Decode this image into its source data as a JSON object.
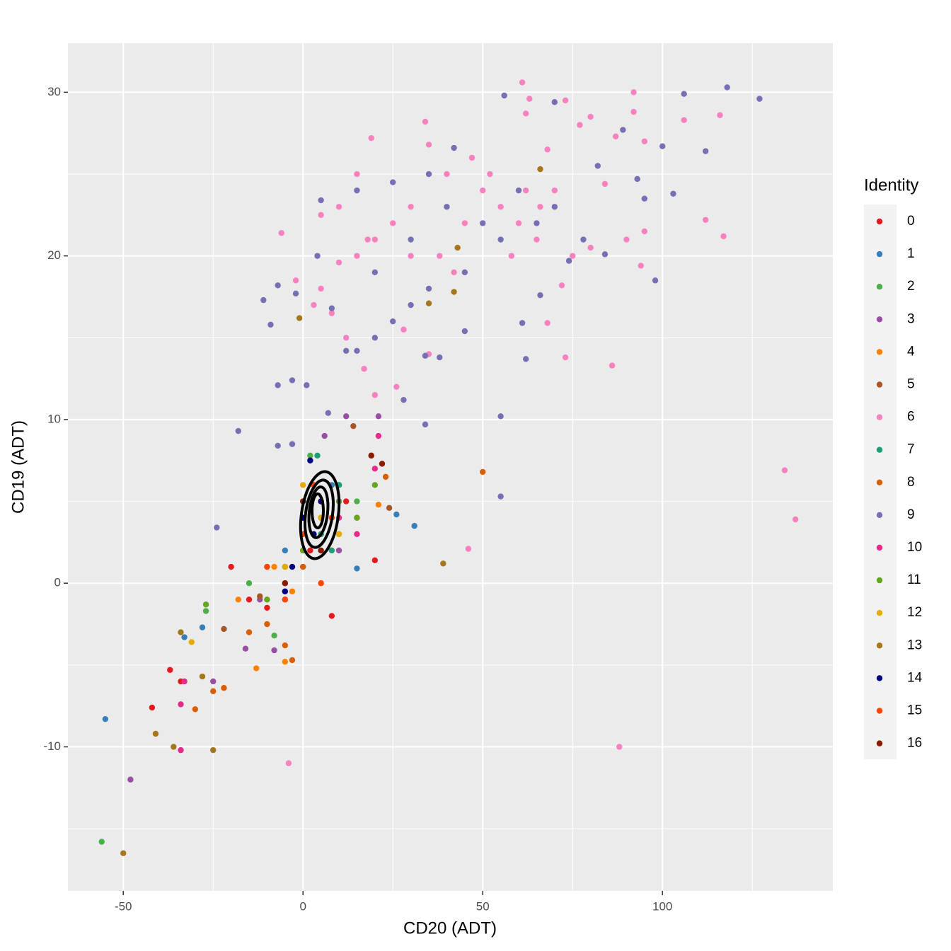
{
  "chart_data": {
    "type": "scatter",
    "x_label": "CD20 (ADT)",
    "y_label": "CD19 (ADT)",
    "legend_title": "Identity",
    "legend_position": "right",
    "grid": true,
    "xlim": [
      -65.4,
      147.4
    ],
    "ylim": [
      -18.8,
      33.0
    ],
    "xticks": [
      -50,
      0,
      50,
      100
    ],
    "yticks": [
      -10,
      0,
      10,
      20,
      30
    ],
    "series": [
      {
        "name": "0",
        "color": "#E41A1C",
        "x": [
          -37,
          -34,
          -42,
          -20,
          -15,
          -5,
          0,
          5,
          10,
          15,
          20,
          -10,
          2,
          8,
          12
        ],
        "y": [
          -5.3,
          -6,
          -7.6,
          1,
          -1,
          0,
          3,
          5,
          6,
          4,
          1.4,
          -1.5,
          2,
          -2,
          5
        ]
      },
      {
        "name": "1",
        "color": "#377EB8",
        "x": [
          -55,
          -33,
          -28,
          31,
          26,
          15,
          -10,
          0,
          5,
          10,
          -5,
          8
        ],
        "y": [
          -8.3,
          -3.3,
          -2.7,
          3.5,
          4.2,
          0.9,
          1,
          3,
          4,
          5,
          2,
          6
        ]
      },
      {
        "name": "2",
        "color": "#4DAF4A",
        "x": [
          -56,
          -27,
          -8,
          -15,
          -5,
          2,
          5,
          10,
          0,
          -10,
          15
        ],
        "y": [
          -15.8,
          -1.7,
          -3.2,
          0,
          1,
          7.8,
          3,
          6,
          2,
          -1,
          5
        ]
      },
      {
        "name": "3",
        "color": "#984EA3",
        "x": [
          -48,
          -25,
          -8,
          -16,
          21,
          12,
          6,
          -5,
          0,
          5,
          10,
          -12
        ],
        "y": [
          -12,
          -6,
          -4.1,
          -4,
          10.2,
          10.2,
          9,
          -1,
          1,
          3,
          2,
          -1
        ]
      },
      {
        "name": "4",
        "color": "#FF7F00",
        "x": [
          -5,
          -13,
          5,
          -3,
          0,
          8,
          21,
          -8,
          3,
          -18
        ],
        "y": [
          -4.8,
          -5.2,
          0,
          -0.5,
          2,
          4,
          4.8,
          1,
          6,
          -1
        ]
      },
      {
        "name": "5",
        "color": "#A65628",
        "x": [
          -22,
          -12,
          19,
          24,
          14,
          0,
          5,
          -5
        ],
        "y": [
          -2.8,
          -0.8,
          7.8,
          4.6,
          9.6,
          4,
          2,
          -1
        ]
      },
      {
        "name": "6",
        "color": "#F781BF",
        "x": [
          61,
          92,
          116,
          84,
          73,
          63,
          106,
          92,
          87,
          95,
          80,
          62,
          77,
          34,
          35,
          19,
          47,
          50,
          40,
          30,
          25,
          20,
          15,
          10,
          5,
          55,
          60,
          65,
          70,
          75,
          90,
          95,
          112,
          117,
          3,
          -2,
          8,
          12,
          17,
          20,
          26,
          38,
          45,
          52,
          68,
          80,
          94,
          72,
          68,
          35,
          28,
          5,
          10,
          15,
          18,
          30,
          42,
          58,
          62,
          66,
          134,
          137,
          46,
          88,
          -4,
          -6,
          86,
          73
        ],
        "y": [
          30.6,
          30,
          28.6,
          24.4,
          29.5,
          29.6,
          28.3,
          28.8,
          27.3,
          27,
          28.5,
          28.7,
          28,
          28.2,
          26.8,
          27.2,
          26,
          24,
          25,
          23,
          22,
          21,
          20,
          19.6,
          18,
          23,
          22,
          21,
          24,
          20,
          21,
          21.5,
          22.2,
          21.2,
          17,
          18.5,
          16.5,
          15,
          13.1,
          11.5,
          12,
          20,
          22,
          25,
          26.5,
          20.5,
          19.4,
          18.2,
          15.9,
          14,
          15.5,
          22.5,
          23,
          25,
          21,
          20,
          19,
          20,
          24,
          23,
          6.9,
          3.9,
          2.1,
          -10,
          -11,
          21.4,
          13.3,
          13.8
        ]
      },
      {
        "name": "7",
        "color": "#1B9E77",
        "x": [
          4,
          0,
          5,
          -5,
          10,
          8
        ],
        "y": [
          7.8,
          5,
          3,
          1,
          6,
          2
        ]
      },
      {
        "name": "8",
        "color": "#D95F02",
        "x": [
          50,
          23,
          -3,
          -30,
          -25,
          -22,
          -10,
          0,
          5,
          -15,
          10,
          -5
        ],
        "y": [
          6.8,
          6.5,
          -4.7,
          -7.7,
          -6.6,
          -6.4,
          -2.5,
          1,
          5,
          -3,
          3,
          -3.8
        ]
      },
      {
        "name": "9",
        "color": "#7570B3",
        "x": [
          56,
          106,
          118,
          127,
          70,
          100,
          112,
          93,
          95,
          103,
          98,
          82,
          89,
          84,
          78,
          74,
          66,
          61,
          62,
          38,
          34,
          45,
          30,
          25,
          20,
          15,
          12,
          8,
          4,
          -2,
          -11,
          -9,
          -7,
          5,
          15,
          25,
          35,
          42,
          50,
          55,
          60,
          65,
          70,
          45,
          30,
          40,
          20,
          35,
          55,
          55,
          34,
          -18,
          -7,
          -3,
          -7,
          1,
          -3,
          7,
          -24,
          28
        ],
        "y": [
          29.8,
          29.9,
          30.3,
          29.6,
          29.4,
          26.7,
          26.4,
          24.7,
          23.5,
          23.8,
          18.5,
          25.5,
          27.7,
          20.1,
          21,
          19.7,
          17.6,
          15.9,
          13.7,
          13.8,
          13.9,
          15.4,
          17,
          16,
          15,
          14.2,
          14.2,
          16.8,
          20,
          17.7,
          17.3,
          15.8,
          18.2,
          23.4,
          24,
          24.5,
          25,
          26.6,
          22,
          21,
          24,
          22,
          23,
          19,
          21,
          23,
          19,
          18,
          10.2,
          5.3,
          9.7,
          9.3,
          8.4,
          8.5,
          12.1,
          12.1,
          12.4,
          10.4,
          3.4,
          11.2
        ]
      },
      {
        "name": "10",
        "color": "#E7298A",
        "x": [
          -34,
          -34,
          -33,
          21,
          20,
          5,
          0,
          -5,
          10,
          15
        ],
        "y": [
          -10.2,
          -7.4,
          -6,
          9,
          7,
          5,
          2,
          0,
          4,
          3
        ]
      },
      {
        "name": "11",
        "color": "#66A61E",
        "x": [
          -27,
          20,
          -10,
          5,
          0,
          10,
          -5,
          15
        ],
        "y": [
          -1.3,
          6,
          -1,
          4,
          2,
          5,
          0,
          4
        ]
      },
      {
        "name": "12",
        "color": "#E6AB02",
        "x": [
          -31,
          0,
          5,
          -5,
          10
        ],
        "y": [
          -3.6,
          6,
          4,
          1,
          3
        ]
      },
      {
        "name": "13",
        "color": "#A6761D",
        "x": [
          -50,
          -36,
          -41,
          -25,
          -34,
          39,
          66,
          -1,
          43,
          42,
          35,
          -28,
          0,
          5
        ],
        "y": [
          -16.5,
          -10,
          -9.2,
          -10.2,
          -3,
          1.2,
          25.3,
          16.2,
          20.5,
          17.8,
          17.1,
          -5.7,
          3,
          5
        ]
      },
      {
        "name": "14",
        "color": "#000080",
        "x": [
          2,
          -3,
          0,
          5,
          -5,
          3
        ],
        "y": [
          7.5,
          1,
          4,
          5,
          -0.5,
          3
        ]
      },
      {
        "name": "15",
        "color": "#FF4500",
        "x": [
          5,
          -5,
          0,
          8,
          -10,
          3
        ],
        "y": [
          0,
          -1,
          3,
          4,
          1,
          6
        ]
      },
      {
        "name": "16",
        "color": "#8B1A00",
        "x": [
          22,
          19,
          0,
          5,
          -5
        ],
        "y": [
          7.3,
          7.8,
          5,
          2,
          0
        ]
      }
    ]
  }
}
